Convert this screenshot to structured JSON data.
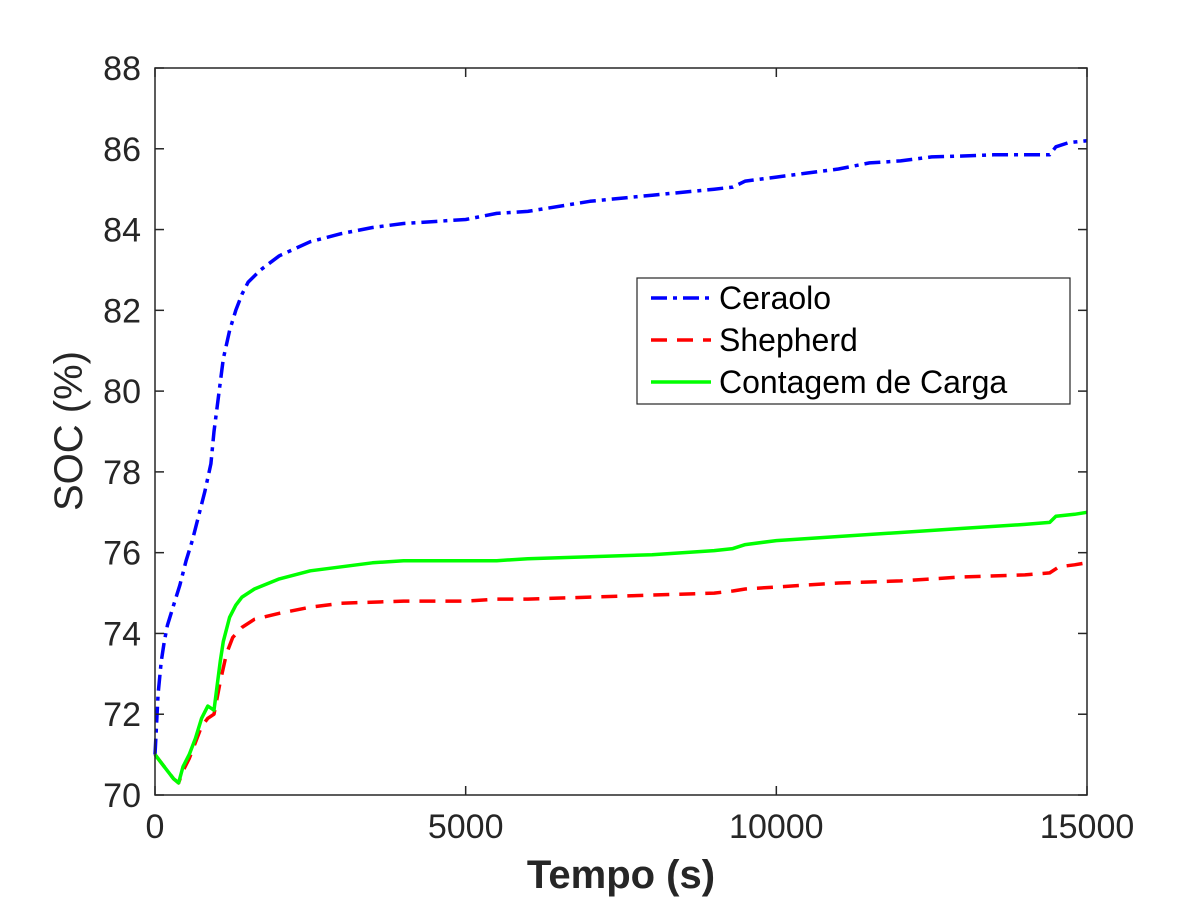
{
  "chart_data": {
    "type": "line",
    "title": "",
    "xlabel": "Tempo (s)",
    "ylabel": "SOC (%)",
    "xlim": [
      0,
      15000
    ],
    "ylim": [
      70,
      88
    ],
    "xticks": [
      0,
      5000,
      10000,
      15000
    ],
    "xtick_labels": [
      "0",
      "5000",
      "10000",
      "15000"
    ],
    "yticks": [
      70,
      72,
      74,
      76,
      78,
      80,
      82,
      84,
      86,
      88
    ],
    "ytick_labels": [
      "70",
      "72",
      "74",
      "76",
      "78",
      "80",
      "82",
      "84",
      "86",
      "88"
    ],
    "grid": false,
    "legend_position": "upper-right",
    "series": [
      {
        "name": "Ceraolo",
        "color": "#0000ff",
        "style": "dash-dot",
        "points": [
          [
            0,
            71.0
          ],
          [
            50,
            72.5
          ],
          [
            100,
            73.3
          ],
          [
            150,
            73.8
          ],
          [
            200,
            74.2
          ],
          [
            300,
            74.7
          ],
          [
            400,
            75.2
          ],
          [
            500,
            75.8
          ],
          [
            600,
            76.3
          ],
          [
            700,
            76.9
          ],
          [
            800,
            77.5
          ],
          [
            900,
            78.2
          ],
          [
            950,
            79.0
          ],
          [
            1000,
            79.6
          ],
          [
            1050,
            80.2
          ],
          [
            1100,
            80.8
          ],
          [
            1200,
            81.5
          ],
          [
            1300,
            82.0
          ],
          [
            1400,
            82.4
          ],
          [
            1500,
            82.7
          ],
          [
            1700,
            83.0
          ],
          [
            2000,
            83.35
          ],
          [
            2500,
            83.7
          ],
          [
            3000,
            83.9
          ],
          [
            3500,
            84.05
          ],
          [
            4000,
            84.15
          ],
          [
            5000,
            84.25
          ],
          [
            5500,
            84.4
          ],
          [
            6000,
            84.45
          ],
          [
            7000,
            84.7
          ],
          [
            8000,
            84.85
          ],
          [
            9000,
            85.0
          ],
          [
            9300,
            85.05
          ],
          [
            9500,
            85.2
          ],
          [
            10000,
            85.3
          ],
          [
            10500,
            85.4
          ],
          [
            11000,
            85.5
          ],
          [
            11500,
            85.65
          ],
          [
            12000,
            85.7
          ],
          [
            12500,
            85.8
          ],
          [
            13000,
            85.82
          ],
          [
            13500,
            85.85
          ],
          [
            14000,
            85.85
          ],
          [
            14400,
            85.85
          ],
          [
            14500,
            86.05
          ],
          [
            14700,
            86.15
          ],
          [
            15000,
            86.2
          ]
        ]
      },
      {
        "name": "Shepherd",
        "color": "#ff0000",
        "style": "dashed",
        "points": [
          [
            0,
            71.0
          ],
          [
            100,
            70.8
          ],
          [
            200,
            70.6
          ],
          [
            300,
            70.4
          ],
          [
            380,
            70.3
          ],
          [
            450,
            70.6
          ],
          [
            550,
            70.9
          ],
          [
            650,
            71.3
          ],
          [
            750,
            71.7
          ],
          [
            850,
            71.9
          ],
          [
            950,
            72.0
          ],
          [
            1050,
            72.8
          ],
          [
            1150,
            73.5
          ],
          [
            1250,
            73.9
          ],
          [
            1400,
            74.15
          ],
          [
            1600,
            74.35
          ],
          [
            2000,
            74.5
          ],
          [
            2500,
            74.65
          ],
          [
            3000,
            74.75
          ],
          [
            4000,
            74.8
          ],
          [
            5000,
            74.8
          ],
          [
            5500,
            74.85
          ],
          [
            6000,
            74.85
          ],
          [
            7000,
            74.9
          ],
          [
            8000,
            74.95
          ],
          [
            9000,
            75.0
          ],
          [
            9300,
            75.05
          ],
          [
            9500,
            75.1
          ],
          [
            10000,
            75.15
          ],
          [
            11000,
            75.25
          ],
          [
            12000,
            75.3
          ],
          [
            13000,
            75.4
          ],
          [
            14000,
            75.45
          ],
          [
            14400,
            75.5
          ],
          [
            14550,
            75.65
          ],
          [
            14800,
            75.7
          ],
          [
            15000,
            75.75
          ]
        ]
      },
      {
        "name": "Contagem de Carga",
        "color": "#00ff00",
        "style": "solid",
        "points": [
          [
            0,
            71.0
          ],
          [
            100,
            70.8
          ],
          [
            200,
            70.6
          ],
          [
            300,
            70.4
          ],
          [
            380,
            70.3
          ],
          [
            450,
            70.7
          ],
          [
            550,
            71.0
          ],
          [
            650,
            71.4
          ],
          [
            750,
            71.9
          ],
          [
            850,
            72.2
          ],
          [
            950,
            72.1
          ],
          [
            1000,
            72.7
          ],
          [
            1050,
            73.3
          ],
          [
            1100,
            73.8
          ],
          [
            1200,
            74.4
          ],
          [
            1300,
            74.7
          ],
          [
            1400,
            74.9
          ],
          [
            1600,
            75.1
          ],
          [
            2000,
            75.35
          ],
          [
            2500,
            75.55
          ],
          [
            3000,
            75.65
          ],
          [
            3500,
            75.75
          ],
          [
            4000,
            75.8
          ],
          [
            5000,
            75.8
          ],
          [
            5500,
            75.8
          ],
          [
            6000,
            75.85
          ],
          [
            7000,
            75.9
          ],
          [
            8000,
            75.95
          ],
          [
            9000,
            76.05
          ],
          [
            9300,
            76.1
          ],
          [
            9500,
            76.2
          ],
          [
            10000,
            76.3
          ],
          [
            11000,
            76.4
          ],
          [
            12000,
            76.5
          ],
          [
            13000,
            76.6
          ],
          [
            14000,
            76.7
          ],
          [
            14400,
            76.75
          ],
          [
            14500,
            76.9
          ],
          [
            14800,
            76.95
          ],
          [
            15000,
            77.0
          ]
        ]
      }
    ]
  }
}
